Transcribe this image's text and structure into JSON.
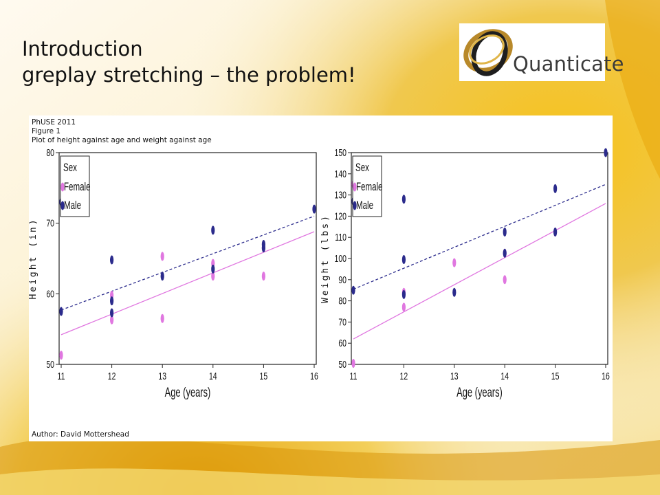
{
  "slide": {
    "title_line1": "Introduction",
    "title_line2": "greplay stretching – the problem!",
    "logo_text": "Quanticate"
  },
  "header": {
    "line1": "PhUSE 2011",
    "line2": "Figure 1",
    "line3": "Plot of height against age and weight against age"
  },
  "footer": {
    "author": "Author: David Mottershead"
  },
  "colors": {
    "male": "#2b2b8c",
    "female": "#e077e0",
    "male_line": "#2b2b8c",
    "female_line": "#e077e0"
  },
  "chart_data": [
    {
      "type": "scatter",
      "xlabel": "Age (years)",
      "ylabel": "Height (in)",
      "xlim": [
        11,
        16
      ],
      "ylim": [
        50,
        80
      ],
      "xticks": [
        11,
        12,
        13,
        14,
        15,
        16
      ],
      "yticks": [
        50,
        60,
        70,
        80
      ],
      "grid": false,
      "legend": {
        "title": "Sex",
        "position": "top-left",
        "entries": [
          "Female",
          "Male"
        ]
      },
      "series": [
        {
          "name": "Female",
          "color": "#e077e0",
          "points": [
            [
              11,
              51.3
            ],
            [
              12,
              56.3
            ],
            [
              12,
              59.8
            ],
            [
              13,
              56.5
            ],
            [
              13,
              65.3
            ],
            [
              14,
              62.5
            ],
            [
              14,
              64.3
            ],
            [
              15,
              62.5
            ],
            [
              15,
              66.5
            ]
          ],
          "fit": [
            [
              11,
              54.2
            ],
            [
              16,
              68.8
            ]
          ]
        },
        {
          "name": "Male",
          "color": "#2b2b8c",
          "points": [
            [
              11,
              57.5
            ],
            [
              11,
              73.0
            ],
            [
              12,
              57.3
            ],
            [
              12,
              59.0
            ],
            [
              12,
              64.8
            ],
            [
              13,
              62.5
            ],
            [
              14,
              63.5
            ],
            [
              14,
              69.0
            ],
            [
              15,
              66.5
            ],
            [
              15,
              67.0
            ],
            [
              16,
              72.0
            ]
          ],
          "fit": [
            [
              11,
              57.7
            ],
            [
              16,
              71.0
            ]
          ]
        }
      ]
    },
    {
      "type": "scatter",
      "xlabel": "Age (years)",
      "ylabel": "Weight (lbs)",
      "xlim": [
        11,
        16
      ],
      "ylim": [
        50,
        150
      ],
      "xticks": [
        11,
        12,
        13,
        14,
        15,
        16
      ],
      "yticks": [
        50,
        60,
        70,
        80,
        90,
        100,
        110,
        120,
        130,
        140,
        150
      ],
      "grid": false,
      "legend": {
        "title": "Sex",
        "position": "top-left",
        "entries": [
          "Female",
          "Male"
        ]
      },
      "series": [
        {
          "name": "Female",
          "color": "#e077e0",
          "points": [
            [
              11,
              50.5
            ],
            [
              11,
              135.0
            ],
            [
              12,
              77.0
            ],
            [
              12,
              84.0
            ],
            [
              13,
              98.0
            ],
            [
              14,
              90.0
            ],
            [
              14,
              102.5
            ],
            [
              15,
              112.5
            ]
          ],
          "fit": [
            [
              11,
              62.0
            ],
            [
              16,
              126.0
            ]
          ]
        },
        {
          "name": "Male",
          "color": "#2b2b8c",
          "points": [
            [
              11,
              85.0
            ],
            [
              11,
              127.0
            ],
            [
              12,
              83.0
            ],
            [
              12,
              99.5
            ],
            [
              12,
              128.0
            ],
            [
              13,
              84.0
            ],
            [
              14,
              102.5
            ],
            [
              14,
              112.5
            ],
            [
              15,
              112.5
            ],
            [
              15,
              133.0
            ],
            [
              16,
              150.0
            ]
          ],
          "fit": [
            [
              11,
              85.5
            ],
            [
              16,
              135.0
            ]
          ]
        }
      ]
    }
  ]
}
